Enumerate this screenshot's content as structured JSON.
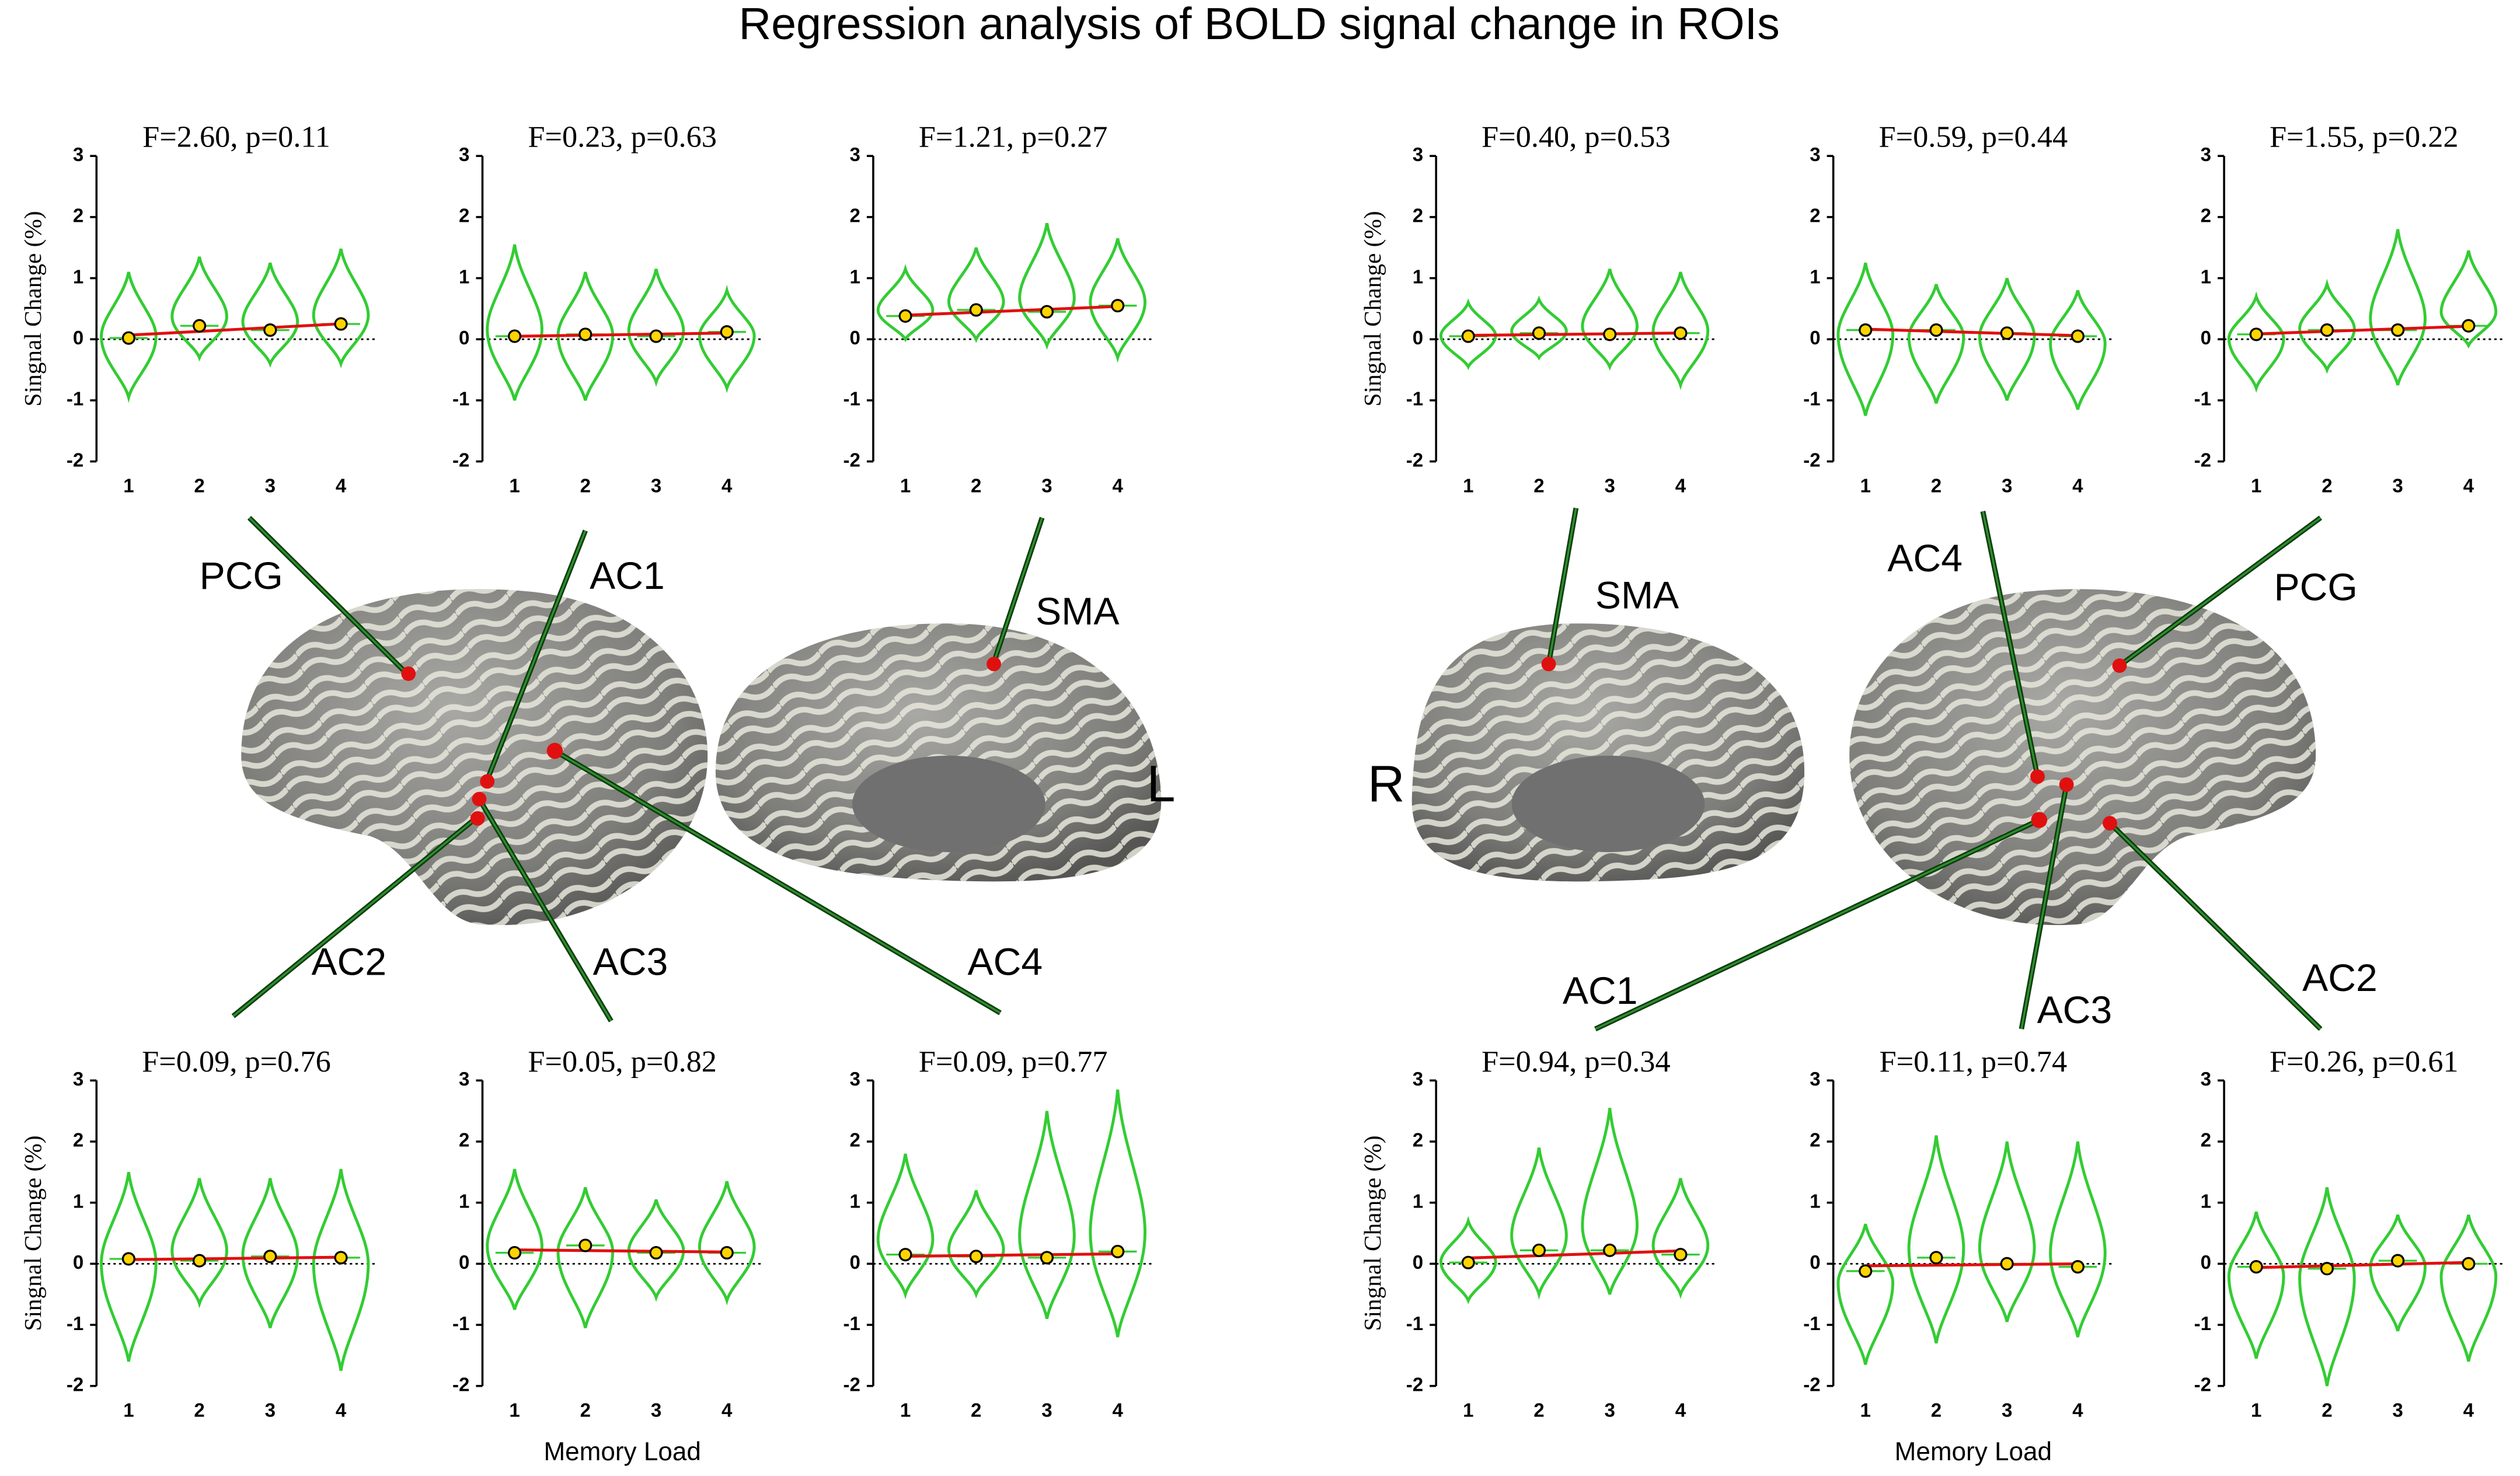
{
  "title": "Regression analysis of BOLD signal change in ROIs",
  "labels": [
    "PCG",
    "AC1",
    "SMA",
    "AC2",
    "AC3",
    "AC4",
    "L",
    "R",
    "SMA",
    "AC4",
    "PCG",
    "AC1",
    "AC3",
    "AC2"
  ],
  "chart_data": [
    {
      "type": "violin",
      "title": "F=2.60, p=0.11",
      "ylabel": "Singnal Change (%)",
      "categories": [
        "1",
        "2",
        "3",
        "4"
      ],
      "values": [
        0.02,
        0.22,
        0.15,
        0.25
      ],
      "min": [
        -0.95,
        -0.3,
        -0.4,
        -0.4
      ],
      "max": [
        1.1,
        1.35,
        1.25,
        1.48
      ],
      "color": "#33cc33",
      "ylim": [
        -2,
        3
      ],
      "yticks": [
        -2,
        -1,
        0,
        1,
        2,
        3
      ]
    },
    {
      "type": "violin",
      "title": "F=0.23, p=0.63",
      "categories": [
        "1",
        "2",
        "3",
        "4"
      ],
      "values": [
        0.05,
        0.08,
        0.05,
        0.12
      ],
      "min": [
        -1.0,
        -1.0,
        -0.7,
        -0.8
      ],
      "max": [
        1.55,
        1.1,
        1.15,
        0.8
      ],
      "color": "#33cc33",
      "ylim": [
        -2,
        3
      ],
      "yticks": [
        -2,
        -1,
        0,
        1,
        2,
        3
      ]
    },
    {
      "type": "violin",
      "title": "F=1.21, p=0.27",
      "categories": [
        "1",
        "2",
        "3",
        "4"
      ],
      "values": [
        0.38,
        0.48,
        0.45,
        0.55
      ],
      "min": [
        0.0,
        0.0,
        -0.1,
        -0.3
      ],
      "max": [
        1.15,
        1.5,
        1.9,
        1.65
      ],
      "color": "#33cc33",
      "ylim": [
        -2,
        3
      ],
      "yticks": [
        -2,
        -1,
        0,
        1,
        2,
        3
      ]
    },
    {
      "type": "violin",
      "title": "F=0.40, p=0.53",
      "ylabel": "Singnal Change (%)",
      "categories": [
        "1",
        "2",
        "3",
        "4"
      ],
      "values": [
        0.05,
        0.1,
        0.08,
        0.1
      ],
      "min": [
        -0.45,
        -0.3,
        -0.45,
        -0.75
      ],
      "max": [
        0.6,
        0.65,
        1.15,
        1.1
      ],
      "color": "#33cc33",
      "ylim": [
        -2,
        3
      ],
      "yticks": [
        -2,
        -1,
        0,
        1,
        2,
        3
      ]
    },
    {
      "type": "violin",
      "title": "F=0.59, p=0.44",
      "categories": [
        "1",
        "2",
        "3",
        "4"
      ],
      "values": [
        0.15,
        0.15,
        0.1,
        0.05
      ],
      "min": [
        -1.25,
        -1.05,
        -1.0,
        -1.15
      ],
      "max": [
        1.25,
        0.9,
        1.0,
        0.8
      ],
      "color": "#33cc33",
      "ylim": [
        -2,
        3
      ],
      "yticks": [
        -2,
        -1,
        0,
        1,
        2,
        3
      ]
    },
    {
      "type": "violin",
      "title": "F=1.55, p=0.22",
      "categories": [
        "1",
        "2",
        "3",
        "4"
      ],
      "values": [
        0.08,
        0.15,
        0.15,
        0.22
      ],
      "min": [
        -0.8,
        -0.5,
        -0.75,
        -0.1
      ],
      "max": [
        0.7,
        0.9,
        1.8,
        1.45
      ],
      "color": "#33cc33",
      "ylim": [
        -2,
        3
      ],
      "yticks": [
        -2,
        -1,
        0,
        1,
        2,
        3
      ]
    },
    {
      "type": "violin",
      "title": "F=0.09, p=0.76",
      "ylabel": "Singnal Change (%)",
      "categories": [
        "1",
        "2",
        "3",
        "4"
      ],
      "values": [
        0.08,
        0.05,
        0.12,
        0.1
      ],
      "min": [
        -1.6,
        -0.65,
        -1.05,
        -1.75
      ],
      "max": [
        1.5,
        1.4,
        1.4,
        1.55
      ],
      "color": "#33cc33",
      "ylim": [
        -2,
        3
      ],
      "yticks": [
        -2,
        -1,
        0,
        1,
        2,
        3
      ]
    },
    {
      "type": "violin",
      "title": "F=0.05, p=0.82",
      "xlabel": "Memory Load",
      "categories": [
        "1",
        "2",
        "3",
        "4"
      ],
      "values": [
        0.18,
        0.3,
        0.18,
        0.18
      ],
      "min": [
        -0.75,
        -1.05,
        -0.55,
        -0.6
      ],
      "max": [
        1.55,
        1.25,
        1.05,
        1.35
      ],
      "color": "#33cc33",
      "ylim": [
        -2,
        3
      ],
      "yticks": [
        -2,
        -1,
        0,
        1,
        2,
        3
      ]
    },
    {
      "type": "violin",
      "title": "F=0.09, p=0.77",
      "categories": [
        "1",
        "2",
        "3",
        "4"
      ],
      "values": [
        0.15,
        0.12,
        0.1,
        0.2
      ],
      "min": [
        -0.5,
        -0.5,
        -0.9,
        -1.2
      ],
      "max": [
        1.8,
        1.2,
        2.5,
        2.85
      ],
      "color": "#33cc33",
      "ylim": [
        -2,
        3
      ],
      "yticks": [
        -2,
        -1,
        0,
        1,
        2,
        3
      ]
    },
    {
      "type": "violin",
      "title": "F=0.94, p=0.34",
      "ylabel": "Singnal Change (%)",
      "categories": [
        "1",
        "2",
        "3",
        "4"
      ],
      "values": [
        0.02,
        0.22,
        0.22,
        0.15
      ],
      "min": [
        -0.6,
        -0.5,
        -0.5,
        -0.5
      ],
      "max": [
        0.7,
        1.9,
        2.55,
        1.4
      ],
      "color": "#33cc33",
      "ylim": [
        -2,
        3
      ],
      "yticks": [
        -2,
        -1,
        0,
        1,
        2,
        3
      ]
    },
    {
      "type": "violin",
      "title": "F=0.11, p=0.74",
      "xlabel": "Memory Load",
      "categories": [
        "1",
        "2",
        "3",
        "4"
      ],
      "values": [
        -0.12,
        0.1,
        0.0,
        -0.05
      ],
      "min": [
        -1.65,
        -1.3,
        -0.95,
        -1.2
      ],
      "max": [
        0.65,
        2.1,
        2.0,
        2.0
      ],
      "color": "#33cc33",
      "ylim": [
        -2,
        3
      ],
      "yticks": [
        -2,
        -1,
        0,
        1,
        2,
        3
      ]
    },
    {
      "type": "violin",
      "title": "F=0.26, p=0.61",
      "categories": [
        "1",
        "2",
        "3",
        "4"
      ],
      "values": [
        -0.05,
        -0.08,
        0.05,
        0.0
      ],
      "min": [
        -1.55,
        -2.0,
        -1.1,
        -1.6
      ],
      "max": [
        0.85,
        1.25,
        0.8,
        0.8
      ],
      "color": "#33cc33",
      "ylim": [
        -2,
        3
      ],
      "yticks": [
        -2,
        -1,
        0,
        1,
        2,
        3
      ]
    }
  ]
}
